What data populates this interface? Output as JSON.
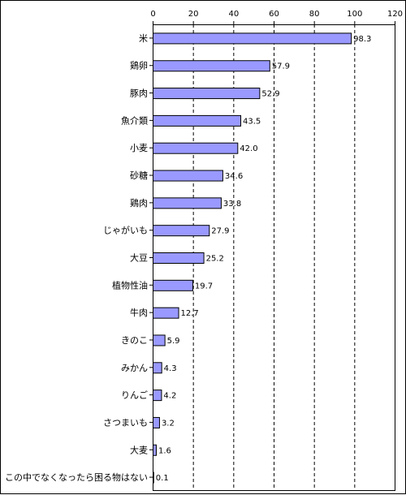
{
  "chart_data": {
    "type": "bar",
    "orientation": "horizontal",
    "title": "",
    "xlabel": "",
    "ylabel": "",
    "xlim": [
      0,
      120
    ],
    "x_ticks": [
      "0",
      "20",
      "40",
      "60",
      "80",
      "100",
      "120"
    ],
    "x_axis_position": "top",
    "grid": "vertical dashed",
    "legend": "none",
    "categories": [
      "米",
      "鶏卵",
      "豚肉",
      "魚介類",
      "小麦",
      "砂糖",
      "鶏肉",
      "じゃがいも",
      "大豆",
      "植物性油",
      "牛肉",
      "きのこ",
      "みかん",
      "りんご",
      "さつまいも",
      "大麦",
      "この中でなくなったら困る物はない"
    ],
    "values": [
      98.3,
      57.9,
      52.9,
      43.5,
      42.0,
      34.6,
      33.8,
      27.9,
      25.2,
      19.7,
      12.7,
      5.9,
      4.3,
      4.2,
      3.2,
      1.6,
      0.1
    ],
    "value_labels": [
      "98.3",
      "57.9",
      "52.9",
      "43.5",
      "42.0",
      "34.6",
      "33.8",
      "27.9",
      "25.2",
      "19.7",
      "12.7",
      "5.9",
      "4.3",
      "4.2",
      "3.2",
      "1.6",
      "0.1"
    ],
    "bar_color": "#9999ff",
    "bar_stroke": "#000000"
  }
}
